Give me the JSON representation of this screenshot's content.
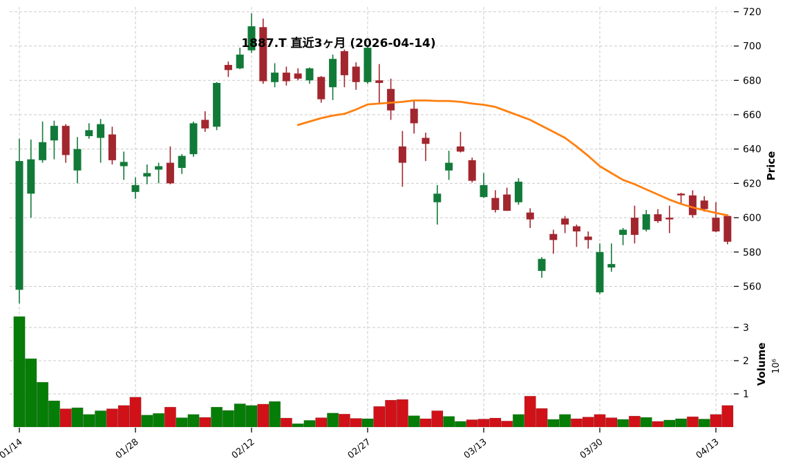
{
  "title": "1887.T 直近3ヶ月 (2026-04-14)",
  "colors": {
    "candle_up": "#127a38",
    "candle_down": "#a2262e",
    "volume_up": "#067d06",
    "volume_down": "#d01118",
    "ma_line": "#ff7f0e",
    "grid": "#c9c9c9",
    "background": "#ffffff",
    "text": "#000000"
  },
  "chart_data": {
    "type": "candlestick",
    "title": "1887.T 直近3ヶ月 (2026-04-14)",
    "grid": true,
    "dates": [
      "01/14",
      "01/15",
      "01/16",
      "01/19",
      "01/20",
      "01/21",
      "01/22",
      "01/23",
      "01/26",
      "01/27",
      "01/28",
      "01/29",
      "01/30",
      "02/02",
      "02/03",
      "02/04",
      "02/05",
      "02/06",
      "02/09",
      "02/10",
      "02/12",
      "02/13",
      "02/16",
      "02/17",
      "02/18",
      "02/19",
      "02/20",
      "02/24",
      "02/25",
      "02/26",
      "02/27",
      "03/02",
      "03/03",
      "03/04",
      "03/05",
      "03/06",
      "03/09",
      "03/10",
      "03/11",
      "03/12",
      "03/13",
      "03/16",
      "03/17",
      "03/18",
      "03/19",
      "03/23",
      "03/24",
      "03/25",
      "03/26",
      "03/27",
      "03/30",
      "03/31",
      "04/01",
      "04/02",
      "04/03",
      "04/06",
      "04/07",
      "04/08",
      "04/09",
      "04/10",
      "04/13",
      "04/14"
    ],
    "open": [
      558,
      614,
      633.5,
      645,
      653.5,
      627.5,
      647.5,
      646.5,
      648.5,
      630,
      615,
      624,
      628,
      632,
      629,
      637,
      657,
      653,
      689,
      687,
      697.5,
      711,
      679,
      684.5,
      684,
      680,
      682,
      676,
      697,
      688,
      679,
      680,
      675,
      641.5,
      663.5,
      646.5,
      609,
      627.5,
      641.5,
      633.5,
      612,
      611.5,
      613.5,
      609,
      603,
      569,
      590.5,
      599.5,
      595,
      589,
      556.5,
      571,
      590,
      600,
      593,
      602,
      600,
      614,
      613,
      610,
      600,
      601
    ],
    "high": [
      646,
      645.5,
      656,
      656.5,
      654.5,
      647,
      655,
      657.5,
      653,
      638.5,
      623.5,
      631,
      632,
      641.5,
      637,
      656,
      662,
      679,
      691,
      699,
      719,
      716,
      690,
      688,
      687,
      687.5,
      682.5,
      695,
      698,
      690.5,
      700.5,
      689.5,
      681,
      650.5,
      668.5,
      649.5,
      619,
      639,
      650,
      635,
      626,
      616,
      617.5,
      623,
      605.5,
      577,
      593,
      601,
      596,
      592,
      585,
      585,
      594,
      607,
      604.5,
      605,
      607,
      614.5,
      616,
      612.5,
      609,
      602
    ],
    "low": [
      550,
      600,
      632,
      634,
      632,
      620,
      646,
      632,
      631,
      622,
      611,
      619.5,
      620,
      619.5,
      625.5,
      635.5,
      650,
      651,
      682,
      686.5,
      696,
      678,
      676,
      677,
      680,
      678,
      667,
      668.5,
      676,
      674.5,
      678,
      666,
      657,
      618,
      649,
      633,
      596,
      622,
      638,
      620.5,
      611.5,
      603,
      604,
      607.5,
      594,
      565,
      579,
      591,
      583,
      582,
      555.5,
      568.5,
      584,
      585,
      592,
      597,
      591,
      608,
      600,
      603.5,
      591.5,
      584.5
    ],
    "close": [
      633,
      634,
      644,
      653.5,
      636.5,
      640,
      651,
      654.5,
      633.5,
      632.5,
      619,
      626,
      630,
      620,
      636,
      655,
      652,
      678.5,
      686,
      695,
      711.5,
      679.5,
      684.5,
      679.5,
      681,
      687,
      669,
      692.5,
      683,
      679,
      699,
      678.5,
      662.5,
      632,
      655,
      643,
      614,
      632,
      638.5,
      621.5,
      619,
      604.5,
      604,
      621,
      599,
      576,
      587,
      596,
      592,
      587,
      580,
      573,
      593,
      590,
      602,
      598,
      599,
      613,
      601.5,
      605,
      592,
      586
    ],
    "volume_millions": [
      3.33,
      2.06,
      1.35,
      0.79,
      0.55,
      0.58,
      0.38,
      0.49,
      0.55,
      0.65,
      0.9,
      0.36,
      0.41,
      0.6,
      0.28,
      0.38,
      0.29,
      0.6,
      0.5,
      0.7,
      0.65,
      0.69,
      0.77,
      0.27,
      0.1,
      0.2,
      0.28,
      0.42,
      0.39,
      0.26,
      0.25,
      0.62,
      0.81,
      0.83,
      0.34,
      0.25,
      0.49,
      0.32,
      0.17,
      0.22,
      0.24,
      0.27,
      0.18,
      0.38,
      0.93,
      0.56,
      0.23,
      0.38,
      0.25,
      0.3,
      0.38,
      0.28,
      0.23,
      0.33,
      0.29,
      0.17,
      0.21,
      0.25,
      0.31,
      0.24,
      0.38,
      0.65
    ],
    "ma_line": {
      "name": "moving-average",
      "values": [
        null,
        null,
        null,
        null,
        null,
        null,
        null,
        null,
        null,
        null,
        null,
        null,
        null,
        null,
        null,
        null,
        null,
        null,
        null,
        null,
        null,
        null,
        null,
        null,
        654,
        656,
        658,
        659.5,
        660.5,
        663,
        666,
        666.5,
        667,
        667.5,
        668.3,
        668.3,
        668,
        668,
        667.5,
        666.5,
        665.8,
        664.5,
        662,
        659.5,
        657,
        653.5,
        650,
        646.5,
        641.5,
        636,
        630,
        626,
        622,
        619.5,
        616.5,
        613.5,
        610.5,
        608,
        606,
        604.3,
        602.8,
        601.3
      ]
    },
    "x_tick_indices": [
      0,
      10,
      20,
      30,
      40,
      50,
      60
    ],
    "x_tick_labels": [
      "01/14",
      "01/28",
      "02/12",
      "02/27",
      "03/13",
      "03/30",
      "04/13"
    ],
    "price_axis": {
      "label": "Price",
      "ticks": [
        560,
        580,
        600,
        620,
        640,
        660,
        680,
        700,
        720
      ],
      "range": [
        553,
        722
      ],
      "side": "right"
    },
    "volume_axis": {
      "label": "Volume",
      "scale_label": "10⁶",
      "ticks": [
        1,
        2,
        3
      ],
      "side": "right"
    },
    "legend": null
  }
}
